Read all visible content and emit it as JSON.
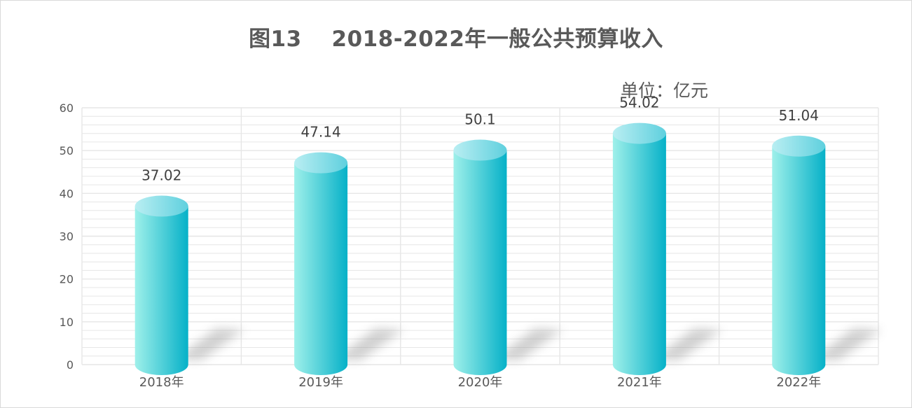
{
  "chart_data": {
    "type": "bar",
    "title": "图13　 2018-2022年一般公共预算收入",
    "unit_label": "单位：亿元",
    "categories": [
      "2018年",
      "2019年",
      "2020年",
      "2021年",
      "2022年"
    ],
    "values": [
      37.02,
      47.14,
      50.1,
      54.02,
      51.04
    ],
    "value_labels": [
      "37.02",
      "47.14",
      "50.1",
      "54.02",
      "51.04"
    ],
    "yticks": [
      "0",
      "10",
      "20",
      "30",
      "40",
      "50",
      "60"
    ],
    "ylim": [
      0,
      60
    ],
    "grid": true,
    "legend": "none",
    "colors": {
      "bar_light": "#9ff0ea",
      "bar_dark": "#06b1c8",
      "top_light": "#b9eef2",
      "top_dark": "#5fd0de",
      "grid": "#e6e6e6",
      "text": "#595959",
      "shadow": "#9a9a9a"
    }
  }
}
